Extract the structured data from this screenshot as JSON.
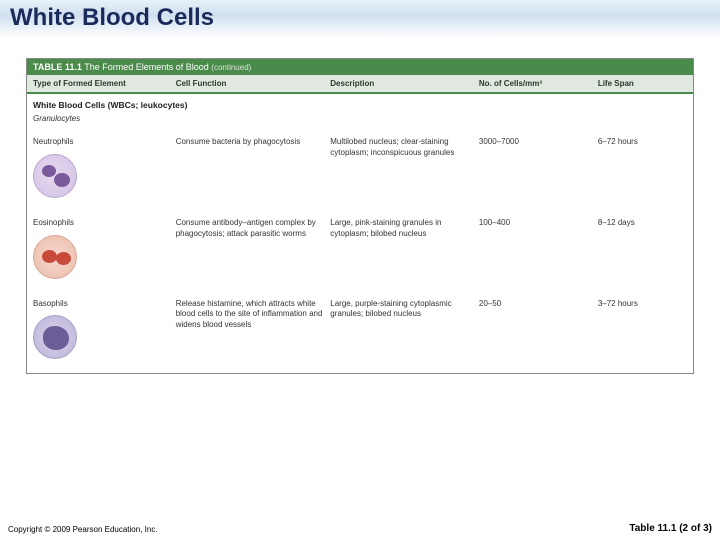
{
  "title": "White Blood Cells",
  "table": {
    "caption_label": "TABLE 11.1",
    "caption_title": "The Formed Elements of Blood",
    "caption_note": "(continued)",
    "headers": {
      "c1": "Type of Formed Element",
      "c2": "Cell Function",
      "c3": "Description",
      "c4": "No. of Cells/mm³",
      "c5": "Life Span"
    },
    "section": "White Blood Cells (WBCs; leukocytes)",
    "subsection": "Granulocytes",
    "rows": [
      {
        "name": "Neutrophils",
        "func": "Consume bacteria by phagocytosis",
        "desc": "Multilobed nucleus; clear-staining cytoplasm; inconspicuous granules",
        "count": "3000–7000",
        "life": "6–72 hours"
      },
      {
        "name": "Eosinophils",
        "func": "Consume antibody–antigen complex by phagocytosis; attack parasitic worms",
        "desc": "Large, pink-staining granules in cytoplasm; bilobed nucleus",
        "count": "100–400",
        "life": "8–12 days"
      },
      {
        "name": "Basophils",
        "func": "Release histamine, which attracts white blood cells to the site of inflammation and widens blood vessels",
        "desc": "Large, purple-staining cytoplasmic granules; bilobed nucleus",
        "count": "20–50",
        "life": "3–72 hours"
      }
    ]
  },
  "footer": {
    "copyright": "Copyright © 2009 Pearson Education, Inc.",
    "table_ref": "Table 11.1 (2 of 3)"
  }
}
